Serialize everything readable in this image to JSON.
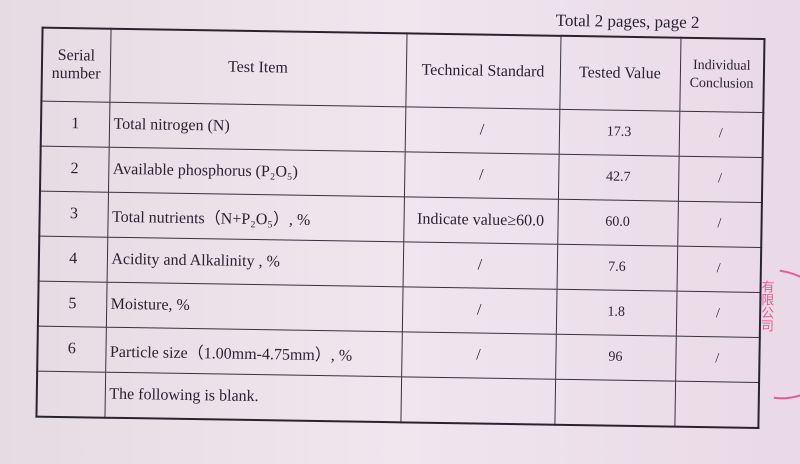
{
  "header": {
    "pages": "Total 2 pages, page 2"
  },
  "table": {
    "columns": [
      "Serial number",
      "Test Item",
      "Technical Standard",
      "Tested Value",
      "Individual Conclusion"
    ],
    "rows": [
      {
        "serial": "1",
        "item": "Total nitrogen (N)",
        "standard": "/",
        "value": "17.3",
        "conclusion": "/"
      },
      {
        "serial": "2",
        "item": "Available phosphorus (P₂O₅)",
        "standard": "/",
        "value": "42.7",
        "conclusion": "/"
      },
      {
        "serial": "3",
        "item": "Total nutrients（N+P₂O₅）, %",
        "standard": "Indicate value≥60.0",
        "value": "60.0",
        "conclusion": "/"
      },
      {
        "serial": "4",
        "item": "Acidity and Alkalinity , %",
        "standard": "/",
        "value": "7.6",
        "conclusion": "/"
      },
      {
        "serial": "5",
        "item": "Moisture, %",
        "standard": "/",
        "value": "1.8",
        "conclusion": "/"
      },
      {
        "serial": "6",
        "item": "Particle size（1.00mm-4.75mm）, %",
        "standard": "/",
        "value": "96",
        "conclusion": "/"
      }
    ],
    "blank_note": "The following is blank."
  },
  "stamp": {
    "text": "有限公司",
    "color": "#e0407a"
  }
}
